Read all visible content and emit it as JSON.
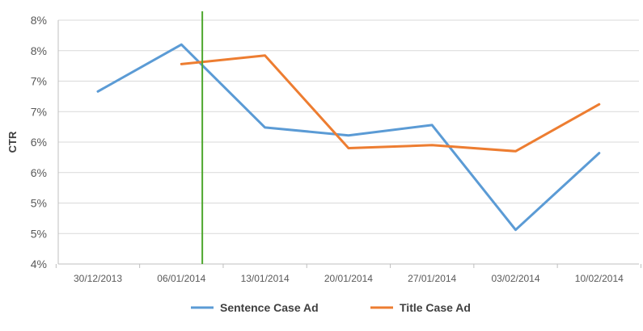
{
  "chart_data": {
    "type": "line",
    "ylabel": "CTR",
    "xlabel": "",
    "y_tick_labels": [
      "8%",
      "8%",
      "7%",
      "7%",
      "6%",
      "6%",
      "5%",
      "5%",
      "4%"
    ],
    "ylim": [
      4.0,
      8.0
    ],
    "categories": [
      "30/12/2013",
      "06/01/2014",
      "13/01/2014",
      "20/01/2014",
      "27/01/2014",
      "03/02/2014",
      "10/02/2014"
    ],
    "series": [
      {
        "name": "Sentence Case Ad",
        "color": "#5b9bd5",
        "values": [
          6.83,
          7.6,
          null,
          null,
          null,
          null,
          null
        ]
      },
      {
        "name": "Title Case Ad",
        "color": "#ed7d31",
        "values": [
          null,
          7.28,
          7.42,
          5.9,
          5.95,
          5.85,
          6.62
        ]
      }
    ],
    "sentence_values_full": [
      6.83,
      7.6,
      6.24,
      6.11,
      6.28,
      4.56,
      5.82
    ],
    "marker_line": {
      "color": "#4ea72e",
      "position_category_index": 1.25
    },
    "grid": true,
    "legend": "bottom"
  }
}
